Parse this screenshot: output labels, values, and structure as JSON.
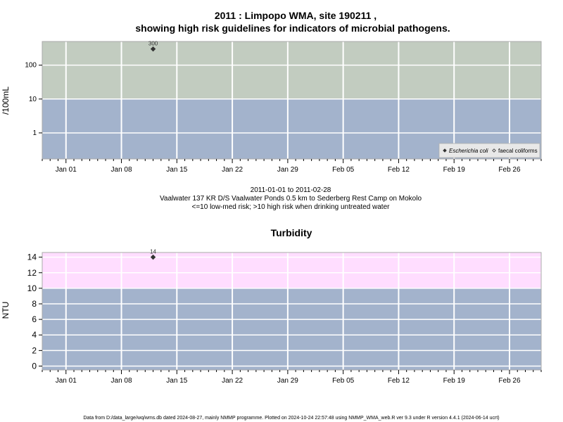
{
  "colors": {
    "high_band": "#c2ccc0",
    "low_band": "#a3b3cc",
    "high_band_turbidity": "#ffddff",
    "grid": "#ffffff",
    "point": "#333333"
  },
  "title_line1": "2011 : Limpopo WMA, site 190211 ,",
  "title_line2": "showing high risk guidelines for indicators of microbial pathogens.",
  "caption": {
    "date_range": "2011-01-01 to 2011-02-28",
    "site_desc": "Vaalwater 137 KR D/S Vaalwater Ponds 0.5 km to Sederberg Rest Camp on Mokolo",
    "risk_note": "<=10 low-med risk; >10 high risk when drinking untreated water"
  },
  "footer": "Data from D:/data_large/wq/wms.db dated 2024-08-27, mainly NMMP programme. Plotted on 2024-10-24 22:57:48 using NMMP_WMA_web.R ver 9.3 under R version 4.4.1 (2024-06-14 ucrt)",
  "x_tick_labels": [
    "Jan 01",
    "Jan 08",
    "Jan 15",
    "Jan 22",
    "Jan 29",
    "Feb 05",
    "Feb 12",
    "Feb 19",
    "Feb 26"
  ],
  "chart_data": [
    {
      "type": "scatter",
      "title": "",
      "ylabel": "/100mL",
      "yscale": "log",
      "y_ticks": [
        1,
        10,
        100
      ],
      "y_tick_labels": [
        "1",
        "10",
        "100"
      ],
      "xlim": [
        "2010-12-29",
        "2011-03-02"
      ],
      "ylim": [
        0.17,
        500
      ],
      "threshold": 10,
      "grid": true,
      "legend_position": "bottom-right",
      "legend": [
        "Escherichia coli",
        "faecal coliforms"
      ],
      "series": [
        {
          "name": "Escherichia coli",
          "marker": "filled-diamond",
          "points": [
            {
              "x": "2011-01-12",
              "y": 300,
              "label": "300"
            }
          ]
        },
        {
          "name": "faecal coliforms",
          "marker": "open-diamond",
          "points": []
        }
      ]
    },
    {
      "type": "scatter",
      "title": "Turbidity",
      "ylabel": "NTU",
      "yscale": "linear",
      "y_ticks": [
        0,
        2,
        4,
        6,
        8,
        10,
        12,
        14
      ],
      "y_tick_labels": [
        "0",
        "2",
        "4",
        "6",
        "8",
        "10",
        "12",
        "14"
      ],
      "xlim": [
        "2010-12-29",
        "2011-03-02"
      ],
      "ylim": [
        -0.5,
        14.6
      ],
      "threshold": 10,
      "grid": true,
      "series": [
        {
          "name": "",
          "marker": "filled-diamond",
          "points": [
            {
              "x": "2011-01-12",
              "y": 14,
              "label": "14"
            }
          ]
        }
      ]
    }
  ]
}
